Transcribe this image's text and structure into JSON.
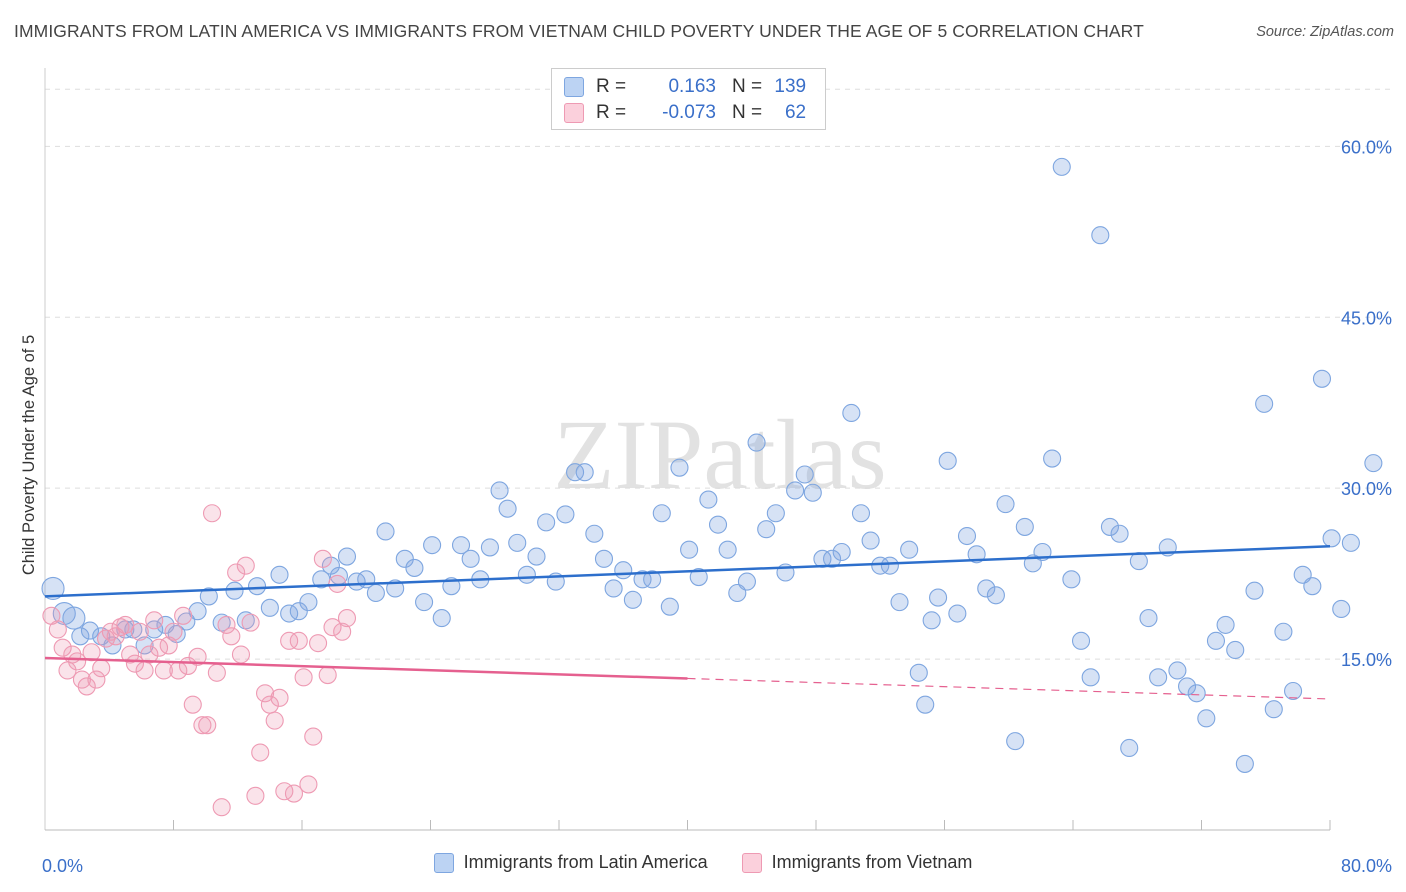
{
  "title": "IMMIGRANTS FROM LATIN AMERICA VS IMMIGRANTS FROM VIETNAM CHILD POVERTY UNDER THE AGE OF 5 CORRELATION CHART",
  "source": "Source: ZipAtlas.com",
  "watermark": "ZIPatlas",
  "stats": {
    "r_label": "R =",
    "n_label": "N =",
    "rows": [
      {
        "r": "0.163",
        "n": "139",
        "color": "#7ea6e0"
      },
      {
        "r": "-0.073",
        "n": "62",
        "color": "#ee9ab3"
      }
    ]
  },
  "chart_data": {
    "type": "scatter",
    "title": "IMMIGRANTS FROM LATIN AMERICA VS IMMIGRANTS FROM VIETNAM CHILD POVERTY UNDER THE AGE OF 5 CORRELATION CHART",
    "xlabel": "",
    "ylabel": "Child Poverty Under the Age of 5",
    "xlim": [
      0,
      80
    ],
    "ylim": [
      0,
      66
    ],
    "x_tick_labels": [
      "0.0%",
      "80.0%"
    ],
    "y_ticks": [
      15,
      30,
      45,
      60
    ],
    "y_tick_labels": [
      "15.0%",
      "30.0%",
      "45.0%",
      "60.0%"
    ],
    "grid": true,
    "legend": [
      "Immigrants from Latin America",
      "Immigrants from Vietnam"
    ],
    "series": [
      {
        "name": "Immigrants from Latin America",
        "color": "#7ea6e0",
        "line_color": "#2d6fcc",
        "trend": {
          "x": [
            0,
            80
          ],
          "y": [
            20.5,
            24.9
          ],
          "dashed_from": null
        },
        "points": [
          [
            0.5,
            21.2
          ],
          [
            1.2,
            19.0
          ],
          [
            1.8,
            18.6
          ],
          [
            2.2,
            17.0
          ],
          [
            2.8,
            17.5
          ],
          [
            3.5,
            17.0
          ],
          [
            4.2,
            16.2
          ],
          [
            5,
            17.6
          ],
          [
            5.5,
            17.6
          ],
          [
            6.2,
            16.2
          ],
          [
            6.8,
            17.6
          ],
          [
            7.5,
            18.0
          ],
          [
            8.2,
            17.2
          ],
          [
            8.8,
            18.3
          ],
          [
            9.5,
            19.2
          ],
          [
            10.2,
            20.5
          ],
          [
            11,
            18.2
          ],
          [
            11.8,
            21.0
          ],
          [
            12.5,
            18.4
          ],
          [
            13.2,
            21.4
          ],
          [
            14,
            19.5
          ],
          [
            14.6,
            22.4
          ],
          [
            15.2,
            19.0
          ],
          [
            15.8,
            19.2
          ],
          [
            16.4,
            20.0
          ],
          [
            17.2,
            22.0
          ],
          [
            17.8,
            23.2
          ],
          [
            18.3,
            22.3
          ],
          [
            18.8,
            24.0
          ],
          [
            19.4,
            21.8
          ],
          [
            20,
            22.0
          ],
          [
            20.6,
            20.8
          ],
          [
            21.2,
            26.2
          ],
          [
            21.8,
            21.2
          ],
          [
            22.4,
            23.8
          ],
          [
            23,
            23.0
          ],
          [
            23.6,
            20.0
          ],
          [
            24.1,
            25.0
          ],
          [
            24.7,
            18.6
          ],
          [
            25.3,
            21.4
          ],
          [
            25.9,
            25.0
          ],
          [
            26.5,
            23.8
          ],
          [
            27.1,
            22.0
          ],
          [
            27.7,
            24.8
          ],
          [
            28.3,
            29.8
          ],
          [
            28.8,
            28.2
          ],
          [
            29.4,
            25.2
          ],
          [
            30,
            22.4
          ],
          [
            30.6,
            24.0
          ],
          [
            31.2,
            27.0
          ],
          [
            31.8,
            21.8
          ],
          [
            32.4,
            27.7
          ],
          [
            33,
            31.4
          ],
          [
            33.6,
            31.4
          ],
          [
            34.2,
            26.0
          ],
          [
            34.8,
            23.8
          ],
          [
            35.4,
            21.2
          ],
          [
            36,
            22.8
          ],
          [
            36.6,
            20.2
          ],
          [
            37.2,
            22.0
          ],
          [
            37.8,
            22.0
          ],
          [
            38.4,
            27.8
          ],
          [
            38.9,
            19.6
          ],
          [
            39.5,
            31.8
          ],
          [
            40.1,
            24.6
          ],
          [
            40.7,
            22.2
          ],
          [
            41.3,
            29.0
          ],
          [
            41.9,
            26.8
          ],
          [
            42.5,
            24.6
          ],
          [
            43.1,
            20.8
          ],
          [
            43.7,
            21.8
          ],
          [
            44.3,
            34.0
          ],
          [
            44.9,
            26.4
          ],
          [
            45.5,
            27.8
          ],
          [
            46.1,
            22.6
          ],
          [
            46.7,
            29.8
          ],
          [
            47.3,
            31.2
          ],
          [
            47.8,
            29.6
          ],
          [
            48.4,
            23.8
          ],
          [
            49,
            23.8
          ],
          [
            49.6,
            24.4
          ],
          [
            50.2,
            36.6
          ],
          [
            50.8,
            27.8
          ],
          [
            51.4,
            25.4
          ],
          [
            52,
            23.2
          ],
          [
            52.6,
            23.2
          ],
          [
            53.2,
            20.0
          ],
          [
            53.8,
            24.6
          ],
          [
            54.4,
            13.8
          ],
          [
            54.8,
            11.0
          ],
          [
            55.2,
            18.4
          ],
          [
            55.6,
            20.4
          ],
          [
            56.2,
            32.4
          ],
          [
            56.8,
            19.0
          ],
          [
            57.4,
            25.8
          ],
          [
            58,
            24.2
          ],
          [
            58.6,
            21.2
          ],
          [
            59.2,
            20.6
          ],
          [
            59.8,
            28.6
          ],
          [
            60.4,
            7.8
          ],
          [
            61,
            26.6
          ],
          [
            61.5,
            23.4
          ],
          [
            62.1,
            24.4
          ],
          [
            62.7,
            32.6
          ],
          [
            63.3,
            58.2
          ],
          [
            63.9,
            22.0
          ],
          [
            64.5,
            16.6
          ],
          [
            65.1,
            13.4
          ],
          [
            65.7,
            52.2
          ],
          [
            66.3,
            26.6
          ],
          [
            66.9,
            26.0
          ],
          [
            67.5,
            7.2
          ],
          [
            68.1,
            23.6
          ],
          [
            68.7,
            18.6
          ],
          [
            69.3,
            13.4
          ],
          [
            69.9,
            24.8
          ],
          [
            70.5,
            14.0
          ],
          [
            71.1,
            12.6
          ],
          [
            71.7,
            12.0
          ],
          [
            72.3,
            9.8
          ],
          [
            72.9,
            16.6
          ],
          [
            73.5,
            18.0
          ],
          [
            74.1,
            15.8
          ],
          [
            74.7,
            5.8
          ],
          [
            75.3,
            21.0
          ],
          [
            75.9,
            37.4
          ],
          [
            76.5,
            10.6
          ],
          [
            77.1,
            17.4
          ],
          [
            77.7,
            12.2
          ],
          [
            78.3,
            22.4
          ],
          [
            78.9,
            21.4
          ],
          [
            79.5,
            39.6
          ],
          [
            80.1,
            25.6
          ],
          [
            80.7,
            19.4
          ],
          [
            81.3,
            25.2
          ],
          [
            82.7,
            32.2
          ]
        ]
      },
      {
        "name": "Immigrants from Vietnam",
        "color": "#ee9ab3",
        "line_color": "#e5608f",
        "trend": {
          "x": [
            0,
            80
          ],
          "y": [
            15.1,
            11.5
          ],
          "dashed_from": 40
        },
        "points": [
          [
            0.4,
            18.8
          ],
          [
            0.8,
            17.6
          ],
          [
            1.1,
            16.0
          ],
          [
            1.4,
            14.0
          ],
          [
            1.7,
            15.4
          ],
          [
            2,
            14.8
          ],
          [
            2.3,
            13.2
          ],
          [
            2.6,
            12.6
          ],
          [
            2.9,
            15.6
          ],
          [
            3.2,
            13.2
          ],
          [
            3.5,
            14.2
          ],
          [
            3.8,
            16.8
          ],
          [
            4.1,
            17.4
          ],
          [
            4.4,
            17.0
          ],
          [
            4.7,
            17.8
          ],
          [
            5,
            18.0
          ],
          [
            5.3,
            15.4
          ],
          [
            5.6,
            14.6
          ],
          [
            5.9,
            17.4
          ],
          [
            6.2,
            14.0
          ],
          [
            6.5,
            15.4
          ],
          [
            6.8,
            18.4
          ],
          [
            7.1,
            16.0
          ],
          [
            7.4,
            14.0
          ],
          [
            7.7,
            16.2
          ],
          [
            8,
            17.4
          ],
          [
            8.3,
            14.0
          ],
          [
            8.6,
            18.8
          ],
          [
            8.9,
            14.4
          ],
          [
            9.2,
            11.0
          ],
          [
            9.5,
            15.2
          ],
          [
            9.8,
            9.2
          ],
          [
            10.1,
            9.2
          ],
          [
            10.4,
            27.8
          ],
          [
            10.7,
            13.8
          ],
          [
            11,
            2.0
          ],
          [
            11.3,
            18.0
          ],
          [
            11.6,
            17.0
          ],
          [
            11.9,
            22.6
          ],
          [
            12.2,
            15.4
          ],
          [
            12.5,
            23.2
          ],
          [
            12.8,
            18.2
          ],
          [
            13.1,
            3.0
          ],
          [
            13.4,
            6.8
          ],
          [
            13.7,
            12.0
          ],
          [
            14,
            11.0
          ],
          [
            14.3,
            9.6
          ],
          [
            14.6,
            11.6
          ],
          [
            14.9,
            3.4
          ],
          [
            15.2,
            16.6
          ],
          [
            15.5,
            3.2
          ],
          [
            15.8,
            16.6
          ],
          [
            16.1,
            13.4
          ],
          [
            16.4,
            4.0
          ],
          [
            16.7,
            8.2
          ],
          [
            17,
            16.4
          ],
          [
            17.3,
            23.8
          ],
          [
            17.6,
            13.6
          ],
          [
            17.9,
            17.8
          ],
          [
            18.2,
            21.6
          ],
          [
            18.5,
            17.4
          ],
          [
            18.8,
            18.6
          ]
        ]
      }
    ]
  }
}
